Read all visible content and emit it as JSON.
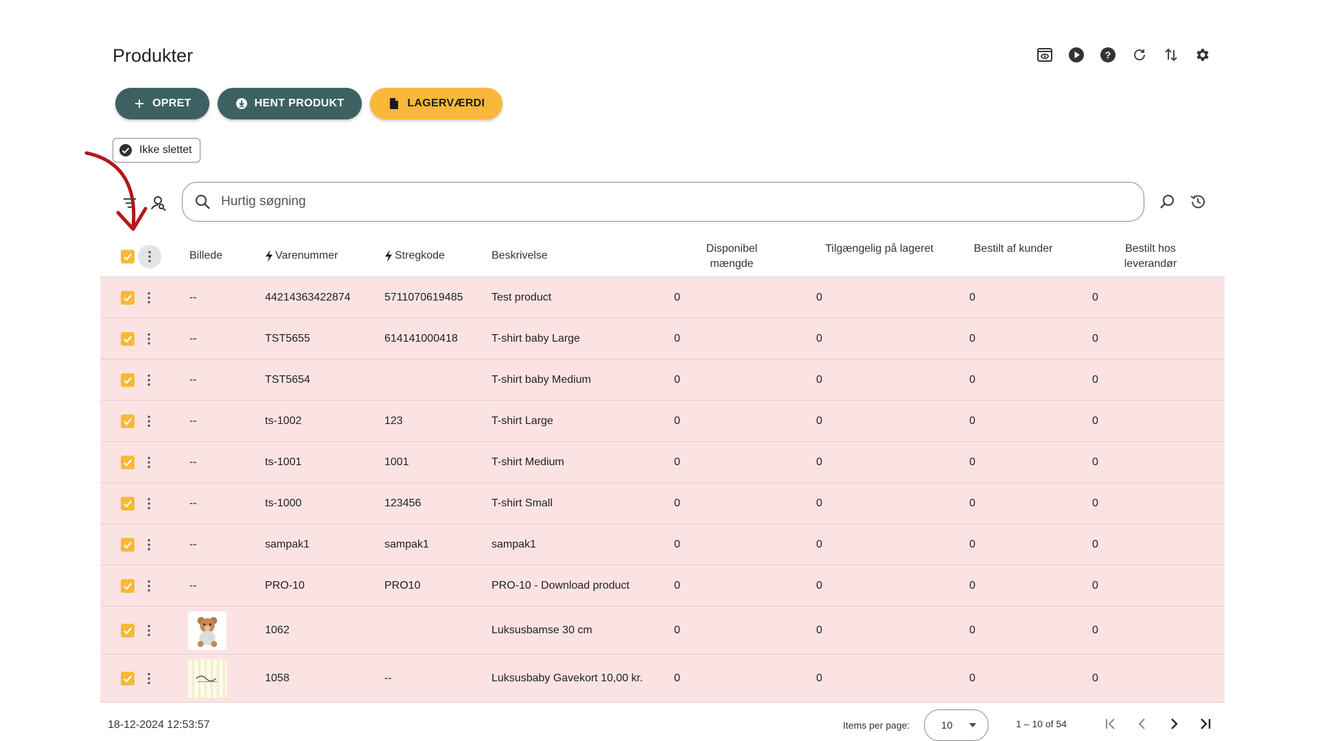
{
  "page": {
    "title": "Produkter"
  },
  "toolbar_icons": [
    "preview-icon",
    "play-icon",
    "help-icon",
    "refresh-icon",
    "sort-arrows-icon",
    "settings-gear-icon"
  ],
  "actions": {
    "create_label": "OPRET",
    "fetch_label": "HENT PRODUKT",
    "stock_value_label": "LAGERVÆRDI"
  },
  "filter_chip": {
    "label": "Ikke slettet"
  },
  "search": {
    "placeholder": "Hurtig søgning"
  },
  "table": {
    "headers": {
      "image": "Billede",
      "sku": "Varenummer",
      "barcode": "Stregkode",
      "description": "Beskrivelse",
      "available_qty": "Disponibel mængde",
      "in_stock": "Tilgængelig på lageret",
      "ordered_by_customers": "Bestilt af kunder",
      "ordered_from_supplier": "Bestilt hos leverandør"
    },
    "rows": [
      {
        "image": "--",
        "sku": "44214363422874",
        "barcode": "5711070619485",
        "description": "Test product",
        "available": "0",
        "in_stock": "0",
        "ordered_customers": "0",
        "ordered_supplier": "0"
      },
      {
        "image": "--",
        "sku": "TST5655",
        "barcode": "614141000418",
        "description": "T-shirt baby Large",
        "available": "0",
        "in_stock": "0",
        "ordered_customers": "0",
        "ordered_supplier": "0"
      },
      {
        "image": "--",
        "sku": "TST5654",
        "barcode": "",
        "description": "T-shirt baby Medium",
        "available": "0",
        "in_stock": "0",
        "ordered_customers": "0",
        "ordered_supplier": "0"
      },
      {
        "image": "--",
        "sku": "ts-1002",
        "barcode": "123",
        "description": "T-shirt Large",
        "available": "0",
        "in_stock": "0",
        "ordered_customers": "0",
        "ordered_supplier": "0"
      },
      {
        "image": "--",
        "sku": "ts-1001",
        "barcode": "1001",
        "description": "T-shirt Medium",
        "available": "0",
        "in_stock": "0",
        "ordered_customers": "0",
        "ordered_supplier": "0"
      },
      {
        "image": "--",
        "sku": "ts-1000",
        "barcode": "123456",
        "description": "T-shirt Small",
        "available": "0",
        "in_stock": "0",
        "ordered_customers": "0",
        "ordered_supplier": "0"
      },
      {
        "image": "--",
        "sku": "sampak1",
        "barcode": "sampak1",
        "description": "sampak1",
        "available": "0",
        "in_stock": "0",
        "ordered_customers": "0",
        "ordered_supplier": "0"
      },
      {
        "image": "--",
        "sku": "PRO-10",
        "barcode": "PRO10",
        "description": "PRO-10 - Download product",
        "available": "0",
        "in_stock": "0",
        "ordered_customers": "0",
        "ordered_supplier": "0"
      },
      {
        "image": "teddy-bear-thumbnail",
        "sku": "1062",
        "barcode": "",
        "description": "Luksusbamse 30 cm",
        "available": "0",
        "in_stock": "0",
        "ordered_customers": "0",
        "ordered_supplier": "0"
      },
      {
        "image": "gift-card-thumbnail",
        "sku": "1058",
        "barcode": "--",
        "description": "Luksusbaby Gavekort 10,00 kr.",
        "available": "0",
        "in_stock": "0",
        "ordered_customers": "0",
        "ordered_supplier": "0"
      }
    ]
  },
  "footer": {
    "timestamp": "18-12-2024 12:53:57",
    "items_per_page_label": "Items per page:",
    "items_per_page_value": "10",
    "range": "1 – 10 of 54"
  },
  "colors": {
    "teal_button": "#3d6163",
    "yellow_button": "#f9b83a",
    "row_highlight": "#fbe3e3",
    "annotation_arrow": "#b1171d"
  }
}
